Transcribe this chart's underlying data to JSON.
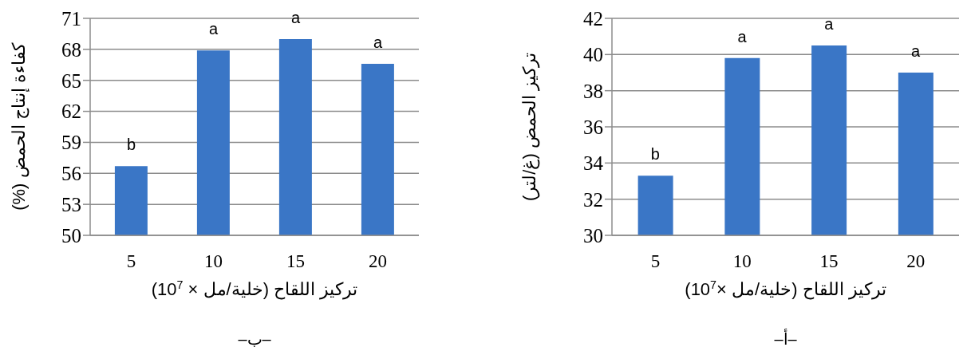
{
  "chart_data": [
    {
      "type": "bar",
      "ylabel": "تركيز الحمض (غ/لتر)",
      "xlabel": "تركيز اللقاح (خلية/مل ×10$^{7}$)",
      "categories": [
        "5",
        "10",
        "15",
        "20"
      ],
      "values": [
        33.3,
        39.8,
        40.5,
        39.0
      ],
      "color": "#3a76c6",
      "ylim": [
        30,
        42
      ],
      "yticks": [
        30,
        32,
        34,
        36,
        38,
        40,
        42
      ],
      "grid": "y",
      "legend": false,
      "annotations": [
        {
          "text": "b",
          "x": "5",
          "y": 33.3
        },
        {
          "text": "a",
          "x": "10",
          "y": 39.8
        },
        {
          "text": "a",
          "x": "15",
          "y": 40.5
        },
        {
          "text": "a",
          "x": "20",
          "y": 39.0
        },
        "–أ–"
      ]
    },
    {
      "type": "bar",
      "ylabel": "كفاءة إنتاج الحمض (%)",
      "xlabel": "تركيز اللقاح (خلية/مل × 10$^{7}$)",
      "categories": [
        "5",
        "10",
        "15",
        "20"
      ],
      "values": [
        56.7,
        67.9,
        69.0,
        66.6
      ],
      "color": "#3a76c6",
      "ylim": [
        50,
        71
      ],
      "yticks": [
        50,
        53,
        56,
        59,
        62,
        65,
        68,
        71
      ],
      "grid": "y",
      "legend": false,
      "annotations": [
        {
          "text": "b",
          "x": "5",
          "y": 56.7
        },
        {
          "text": "a",
          "x": "10",
          "y": 67.9
        },
        {
          "text": "a",
          "x": "15",
          "y": 69.0
        },
        {
          "text": "a",
          "x": "20",
          "y": 66.6
        },
        "–ب–"
      ]
    }
  ]
}
